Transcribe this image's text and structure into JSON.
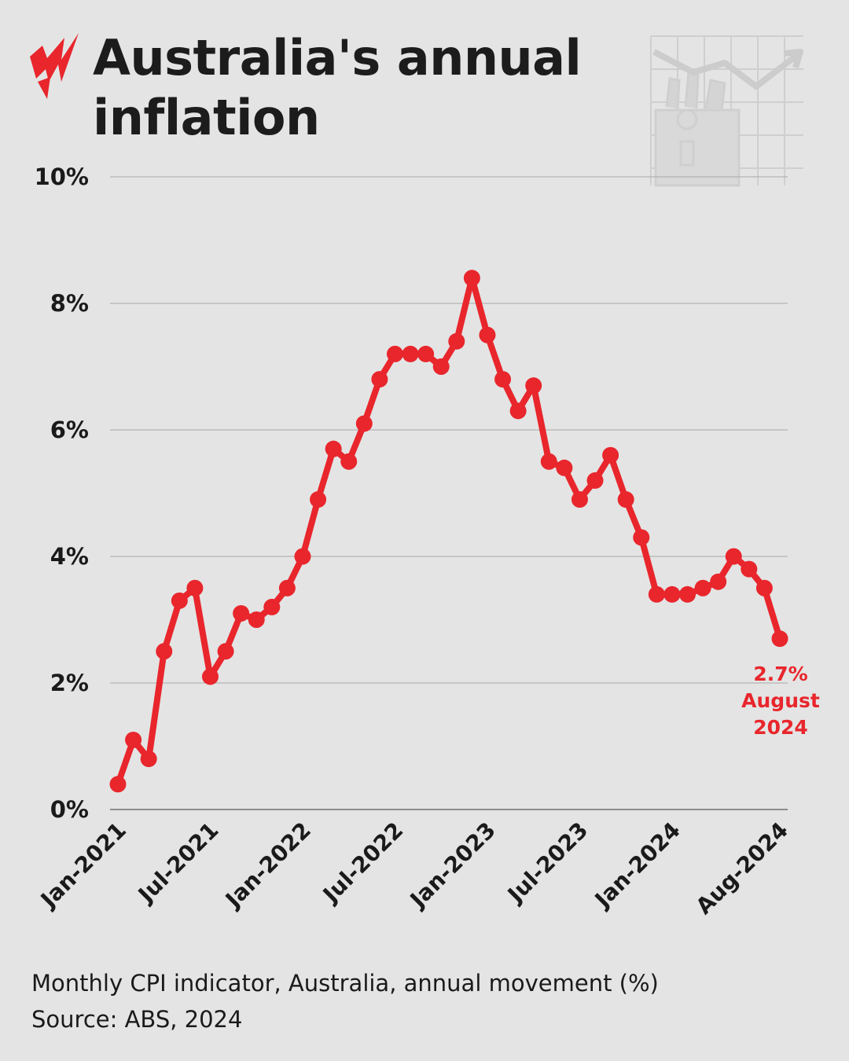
{
  "header": {
    "title_line1": "Australia's annual",
    "title_line2": "inflation"
  },
  "colors": {
    "background": "#e4e4e4",
    "line": "#e8262c",
    "text": "#1a1a1a",
    "grid": "#a8a8a8",
    "logo": "#e8262c"
  },
  "icons": {
    "logo": "sbs-logo-icon",
    "decoration": "shopping-bag-rising-chart-icon"
  },
  "chart_data": {
    "type": "line",
    "title": "Australia's annual inflation",
    "x": [
      "Jan-2021",
      "Feb-2021",
      "Mar-2021",
      "Apr-2021",
      "May-2021",
      "Jun-2021",
      "Jul-2021",
      "Aug-2021",
      "Sep-2021",
      "Oct-2021",
      "Nov-2021",
      "Dec-2021",
      "Jan-2022",
      "Feb-2022",
      "Mar-2022",
      "Apr-2022",
      "May-2022",
      "Jun-2022",
      "Jul-2022",
      "Aug-2022",
      "Sep-2022",
      "Oct-2022",
      "Nov-2022",
      "Dec-2022",
      "Jan-2023",
      "Feb-2023",
      "Mar-2023",
      "Apr-2023",
      "May-2023",
      "Jun-2023",
      "Jul-2023",
      "Aug-2023",
      "Sep-2023",
      "Oct-2023",
      "Nov-2023",
      "Dec-2023",
      "Jan-2024",
      "Feb-2024",
      "Mar-2024",
      "Apr-2024",
      "May-2024",
      "Jun-2024",
      "Jul-2024",
      "Aug-2024"
    ],
    "series": [
      {
        "values": [
          0.4,
          1.1,
          0.8,
          2.5,
          3.3,
          3.5,
          2.1,
          2.5,
          3.1,
          3.0,
          3.2,
          3.5,
          4.0,
          4.9,
          5.7,
          5.5,
          6.1,
          6.8,
          7.2,
          7.2,
          7.2,
          7.0,
          7.4,
          8.4,
          7.5,
          6.8,
          6.3,
          6.7,
          5.5,
          5.4,
          4.9,
          5.2,
          5.6,
          4.9,
          4.3,
          3.4,
          3.4,
          3.4,
          3.5,
          3.6,
          4.0,
          3.8,
          3.5,
          2.7
        ]
      }
    ],
    "x_tick_labels": [
      "Jan-2021",
      "Jul-2021",
      "Jan-2022",
      "Jul-2022",
      "Jan-2023",
      "Jul-2023",
      "Jan-2024",
      "Aug-2024"
    ],
    "x_tick_indices": [
      0,
      6,
      12,
      18,
      24,
      30,
      36,
      43
    ],
    "y_ticks": [
      0,
      2,
      4,
      6,
      8,
      10
    ],
    "y_tick_labels": [
      "0%",
      "2%",
      "4%",
      "6%",
      "8%",
      "10%"
    ],
    "ylim": [
      0,
      10
    ],
    "grid": true,
    "annotation": {
      "line1": "2.7%",
      "line2": "August",
      "line3": "2024",
      "index": 43
    }
  },
  "footer": {
    "description": "Monthly CPI indicator, Australia, annual movement (%)",
    "source": "Source: ABS, 2024"
  }
}
